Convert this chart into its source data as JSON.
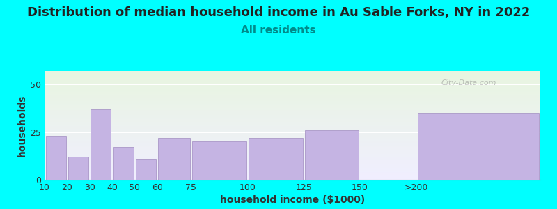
{
  "title": "Distribution of median household income in Au Sable Forks, NY in 2022",
  "subtitle": "All residents",
  "xlabel": "household income ($1000)",
  "ylabel": "households",
  "bg_color": "#00FFFF",
  "bar_color": "#c5b4e3",
  "bar_edge_color": "#a08cc0",
  "grad_top": "#e8f5e0",
  "grad_bottom": "#f0eeff",
  "categories": [
    "10",
    "20",
    "30",
    "40",
    "50",
    "60",
    "75",
    "100",
    "125",
    "150",
    ">200"
  ],
  "values": [
    23,
    12,
    37,
    17,
    11,
    22,
    20,
    22,
    26,
    0,
    35
  ],
  "bar_lefts": [
    10,
    20,
    30,
    40,
    50,
    60,
    75,
    100,
    125,
    150,
    175
  ],
  "bar_rights": [
    20,
    30,
    40,
    50,
    60,
    75,
    100,
    125,
    150,
    175,
    230
  ],
  "tick_positions": [
    10,
    20,
    30,
    40,
    50,
    60,
    75,
    100,
    125,
    150,
    175
  ],
  "tick_labels": [
    "10",
    "20",
    "30",
    "40",
    "50",
    "60",
    "75",
    "100",
    "125",
    "150",
    ">200"
  ],
  "ylim": [
    0,
    57
  ],
  "xlim": [
    10,
    230
  ],
  "yticks": [
    0,
    25,
    50
  ],
  "title_fontsize": 13,
  "subtitle_fontsize": 11,
  "axis_label_fontsize": 10,
  "tick_fontsize": 9,
  "subtitle_color": "#008B8B",
  "title_color": "#222222",
  "watermark": "City-Data.com"
}
